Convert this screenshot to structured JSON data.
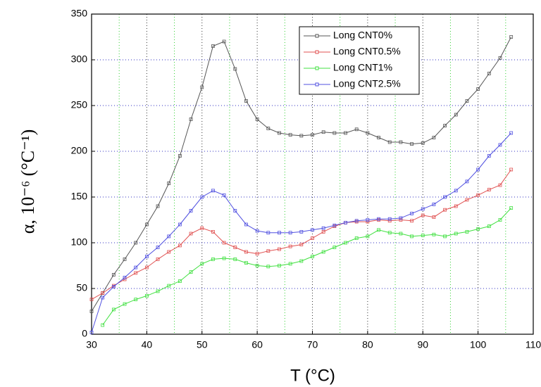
{
  "chart_data": {
    "type": "line",
    "xlabel": "T (°C)",
    "ylabel": "α, 10⁻⁶ (°C⁻¹)",
    "x": [
      30,
      32,
      34,
      36,
      38,
      40,
      42,
      44,
      46,
      48,
      50,
      52,
      54,
      56,
      58,
      60,
      62,
      64,
      66,
      68,
      70,
      72,
      74,
      76,
      78,
      80,
      82,
      84,
      86,
      88,
      90,
      92,
      94,
      96,
      98,
      100,
      102,
      104,
      106
    ],
    "series": [
      {
        "name": "Long CNT0%",
        "color": "#555555",
        "values": [
          25,
          45,
          65,
          82,
          100,
          120,
          140,
          165,
          195,
          235,
          270,
          315,
          320,
          290,
          255,
          235,
          225,
          220,
          218,
          217,
          218,
          221,
          220,
          220,
          224,
          220,
          215,
          210,
          210,
          208,
          209,
          215,
          228,
          240,
          255,
          268,
          285,
          302,
          325
        ]
      },
      {
        "name": "Long CNT0.5%",
        "color": "#e05050",
        "values": [
          38,
          45,
          53,
          60,
          67,
          73,
          82,
          90,
          97,
          110,
          116,
          112,
          100,
          95,
          90,
          88,
          91,
          93,
          96,
          98,
          105,
          112,
          118,
          122,
          123,
          123,
          125,
          124,
          125,
          124,
          130,
          128,
          136,
          140,
          147,
          152,
          158,
          163,
          180
        ]
      },
      {
        "name": "Long CNT1%",
        "color": "#40e040",
        "values": [
          null,
          10,
          27,
          33,
          38,
          42,
          47,
          53,
          58,
          68,
          77,
          82,
          83,
          82,
          78,
          75,
          74,
          75,
          77,
          80,
          85,
          90,
          95,
          100,
          105,
          107,
          114,
          111,
          110,
          107,
          108,
          109,
          107,
          110,
          112,
          115,
          118,
          125,
          138
        ]
      },
      {
        "name": "Long CNT2.5%",
        "color": "#5050e0",
        "values": [
          2,
          40,
          52,
          62,
          73,
          85,
          95,
          107,
          120,
          135,
          150,
          157,
          152,
          135,
          120,
          113,
          111,
          111,
          111,
          112,
          114,
          116,
          119,
          122,
          124,
          125,
          126,
          126,
          127,
          132,
          137,
          142,
          150,
          157,
          167,
          180,
          195,
          207,
          220
        ]
      }
    ],
    "xlim": [
      30,
      110
    ],
    "xticks": [
      30,
      40,
      50,
      60,
      70,
      80,
      90,
      100,
      110
    ],
    "minor_grid_x": [
      35,
      45,
      55,
      65,
      75,
      85,
      95,
      105
    ],
    "ylim": [
      0,
      350
    ],
    "yticks": [
      0,
      50,
      100,
      150,
      200,
      250,
      300,
      350
    ],
    "grid": true,
    "legend": "top-right"
  }
}
